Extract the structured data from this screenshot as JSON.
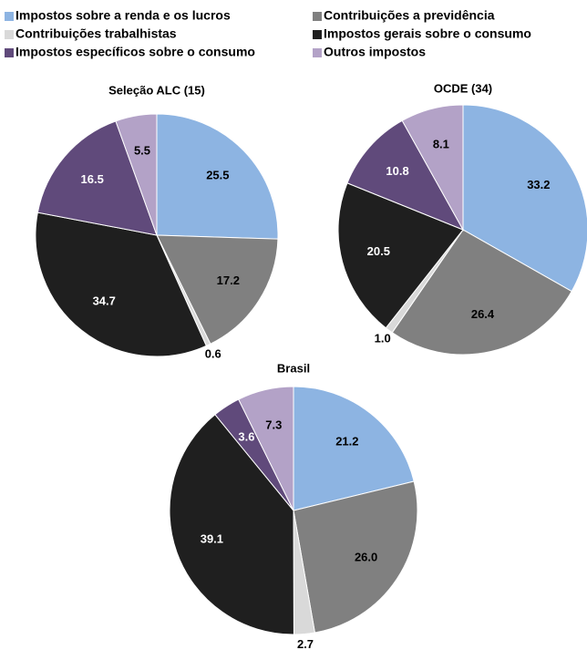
{
  "legend": {
    "categories": [
      "Impostos sobre a renda e os lucros",
      "Contribuições a previdência",
      "Contribuições trabalhistas",
      "Impostos gerais sobre o consumo",
      "Impostos específicos sobre o consumo",
      "Outros impostos"
    ],
    "colors": [
      "#8db4e2",
      "#808080",
      "#d9d9d9",
      "#1f1f1f",
      "#604a7b",
      "#b3a2c7"
    ]
  },
  "chart_data": [
    {
      "type": "pie",
      "title": "Seleção ALC (15)",
      "values": [
        25.5,
        17.2,
        0.6,
        34.7,
        16.5,
        5.5
      ],
      "value_labels": [
        "25.5",
        "17.2",
        "0.6",
        "34.7",
        "16.5",
        "5.5"
      ]
    },
    {
      "type": "pie",
      "title": "OCDE (34)",
      "values": [
        33.2,
        26.4,
        1.0,
        20.5,
        10.8,
        8.1
      ],
      "value_labels": [
        "33.2",
        "26.4",
        "1.0",
        "20.5",
        "10.8",
        "8.1"
      ]
    },
    {
      "type": "pie",
      "title": "Brasil",
      "values": [
        21.2,
        26.0,
        2.7,
        39.1,
        3.6,
        7.3
      ],
      "value_labels": [
        "21.2",
        "26.0",
        "2.7",
        "39.1",
        "3.6",
        "7.3"
      ]
    }
  ]
}
